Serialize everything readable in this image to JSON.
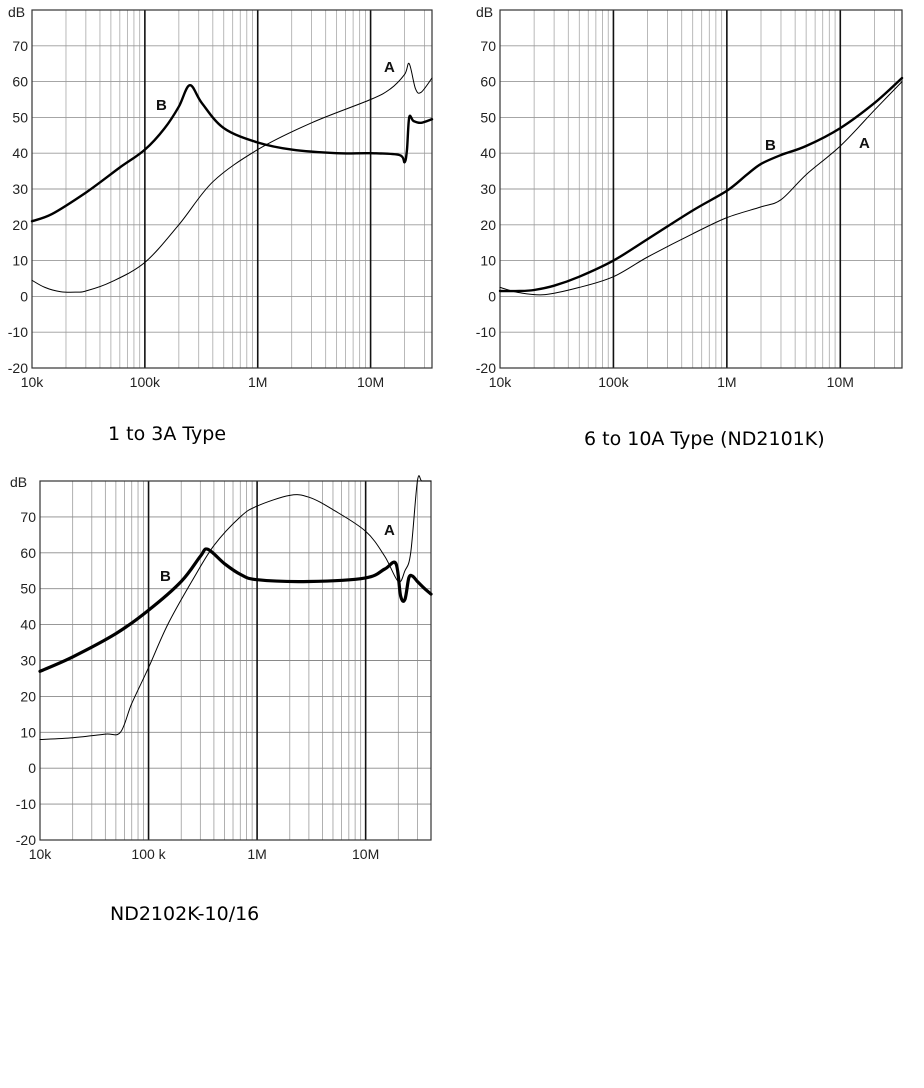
{
  "chart_data": [
    {
      "type": "line",
      "title": "1 to 3A Type",
      "ylabel": "dB",
      "xlabel": "",
      "xscale": "log",
      "xlim": [
        10000,
        35000000
      ],
      "ylim": [
        -20,
        80
      ],
      "x_tick_labels": [
        "10k",
        "100k",
        "1M",
        "10M"
      ],
      "y_tick_labels": [
        "70",
        "60",
        "50",
        "40",
        "30",
        "20",
        "10",
        "0",
        "-10",
        "-20"
      ],
      "unit_label": "dB",
      "grid": true,
      "series": [
        {
          "name": "A",
          "x": [
            10000,
            13000,
            18000,
            25000,
            30000,
            50000,
            100000,
            200000,
            400000,
            1000000,
            3000000,
            10000000,
            15000000,
            20000000,
            22000000,
            25000000,
            28000000,
            35000000
          ],
          "y": [
            4.5,
            2.5,
            1.3,
            1.2,
            1.5,
            4,
            9.5,
            20,
            32,
            41,
            48.5,
            55,
            58,
            62,
            65,
            58,
            57,
            61
          ]
        },
        {
          "name": "B",
          "x": [
            10000,
            15000,
            30000,
            60000,
            100000,
            150000,
            200000,
            250000,
            320000,
            500000,
            1000000,
            2000000,
            5000000,
            10000000,
            18000000,
            20000000,
            21000000,
            22000000,
            24000000,
            28000000,
            35000000
          ],
          "y": [
            21,
            23,
            29,
            36,
            41,
            47,
            53,
            59,
            54,
            47,
            43,
            41,
            40,
            40,
            39.5,
            37.5,
            41,
            50,
            49,
            48.5,
            49.5
          ]
        }
      ],
      "curve_labels": [
        "A",
        "B"
      ]
    },
    {
      "type": "line",
      "title": "6 to 10A Type (ND2101K)",
      "ylabel": "dB",
      "xlabel": "",
      "xscale": "log",
      "xlim": [
        10000,
        35000000
      ],
      "ylim": [
        -20,
        80
      ],
      "x_tick_labels": [
        "10k",
        "100k",
        "1M",
        "10M"
      ],
      "y_tick_labels": [
        "70",
        "60",
        "50",
        "40",
        "30",
        "20",
        "10",
        "0",
        "-10",
        "-20"
      ],
      "unit_label": "dB",
      "grid": true,
      "series": [
        {
          "name": "A",
          "x": [
            10000,
            15000,
            25000,
            50000,
            100000,
            200000,
            500000,
            1000000,
            2000000,
            3000000,
            5000000,
            10000000,
            20000000,
            35000000
          ],
          "y": [
            2.5,
            1,
            0.5,
            2.5,
            5.5,
            11,
            17.5,
            22,
            25,
            27,
            34,
            42,
            52,
            60
          ]
        },
        {
          "name": "B",
          "x": [
            10000,
            15000,
            20000,
            30000,
            50000,
            100000,
            200000,
            500000,
            1000000,
            1500000,
            2000000,
            3000000,
            5000000,
            10000000,
            20000000,
            35000000
          ],
          "y": [
            1.5,
            1.5,
            1.8,
            3,
            5.5,
            10,
            16,
            24,
            29.5,
            34,
            37,
            39.5,
            42,
            47,
            54,
            61
          ]
        }
      ],
      "curve_labels": [
        "A",
        "B"
      ]
    },
    {
      "type": "line",
      "title": "ND2102K-10/16",
      "ylabel": "dB",
      "xlabel": "",
      "xscale": "log",
      "xlim": [
        10000,
        40000000
      ],
      "ylim": [
        -20,
        80
      ],
      "x_tick_labels": [
        "10k",
        "100 k",
        "1M",
        "10M"
      ],
      "y_tick_labels": [
        "70",
        "60",
        "50",
        "40",
        "30",
        "20",
        "10",
        "0",
        "-10",
        "-20"
      ],
      "unit_label": "dB",
      "grid": true,
      "series": [
        {
          "name": "A",
          "x": [
            10000,
            20000,
            40000,
            55000,
            70000,
            100000,
            150000,
            250000,
            400000,
            700000,
            1000000,
            2000000,
            3000000,
            5000000,
            10000000,
            15000000,
            20000000,
            23000000,
            26000000,
            30000000,
            33000000,
            40000000
          ],
          "y": [
            8,
            8.5,
            9.5,
            10,
            18,
            28,
            40,
            52,
            62,
            70,
            73,
            76,
            75.5,
            72,
            66,
            59,
            52,
            55,
            60,
            80,
            80,
            80
          ]
        },
        {
          "name": "B",
          "x": [
            10000,
            20000,
            50000,
            100000,
            200000,
            300000,
            350000,
            500000,
            700000,
            1000000,
            3000000,
            10000000,
            15000000,
            19000000,
            21000000,
            23000000,
            25000000,
            27000000,
            30000000,
            35000000,
            40000000
          ],
          "y": [
            27,
            31,
            37.5,
            44,
            52,
            59,
            61,
            57,
            54,
            52.5,
            52,
            53,
            55.5,
            57,
            48,
            47,
            53,
            53.5,
            52,
            50,
            48.5
          ]
        }
      ],
      "curve_labels": [
        "A",
        "B"
      ]
    }
  ]
}
